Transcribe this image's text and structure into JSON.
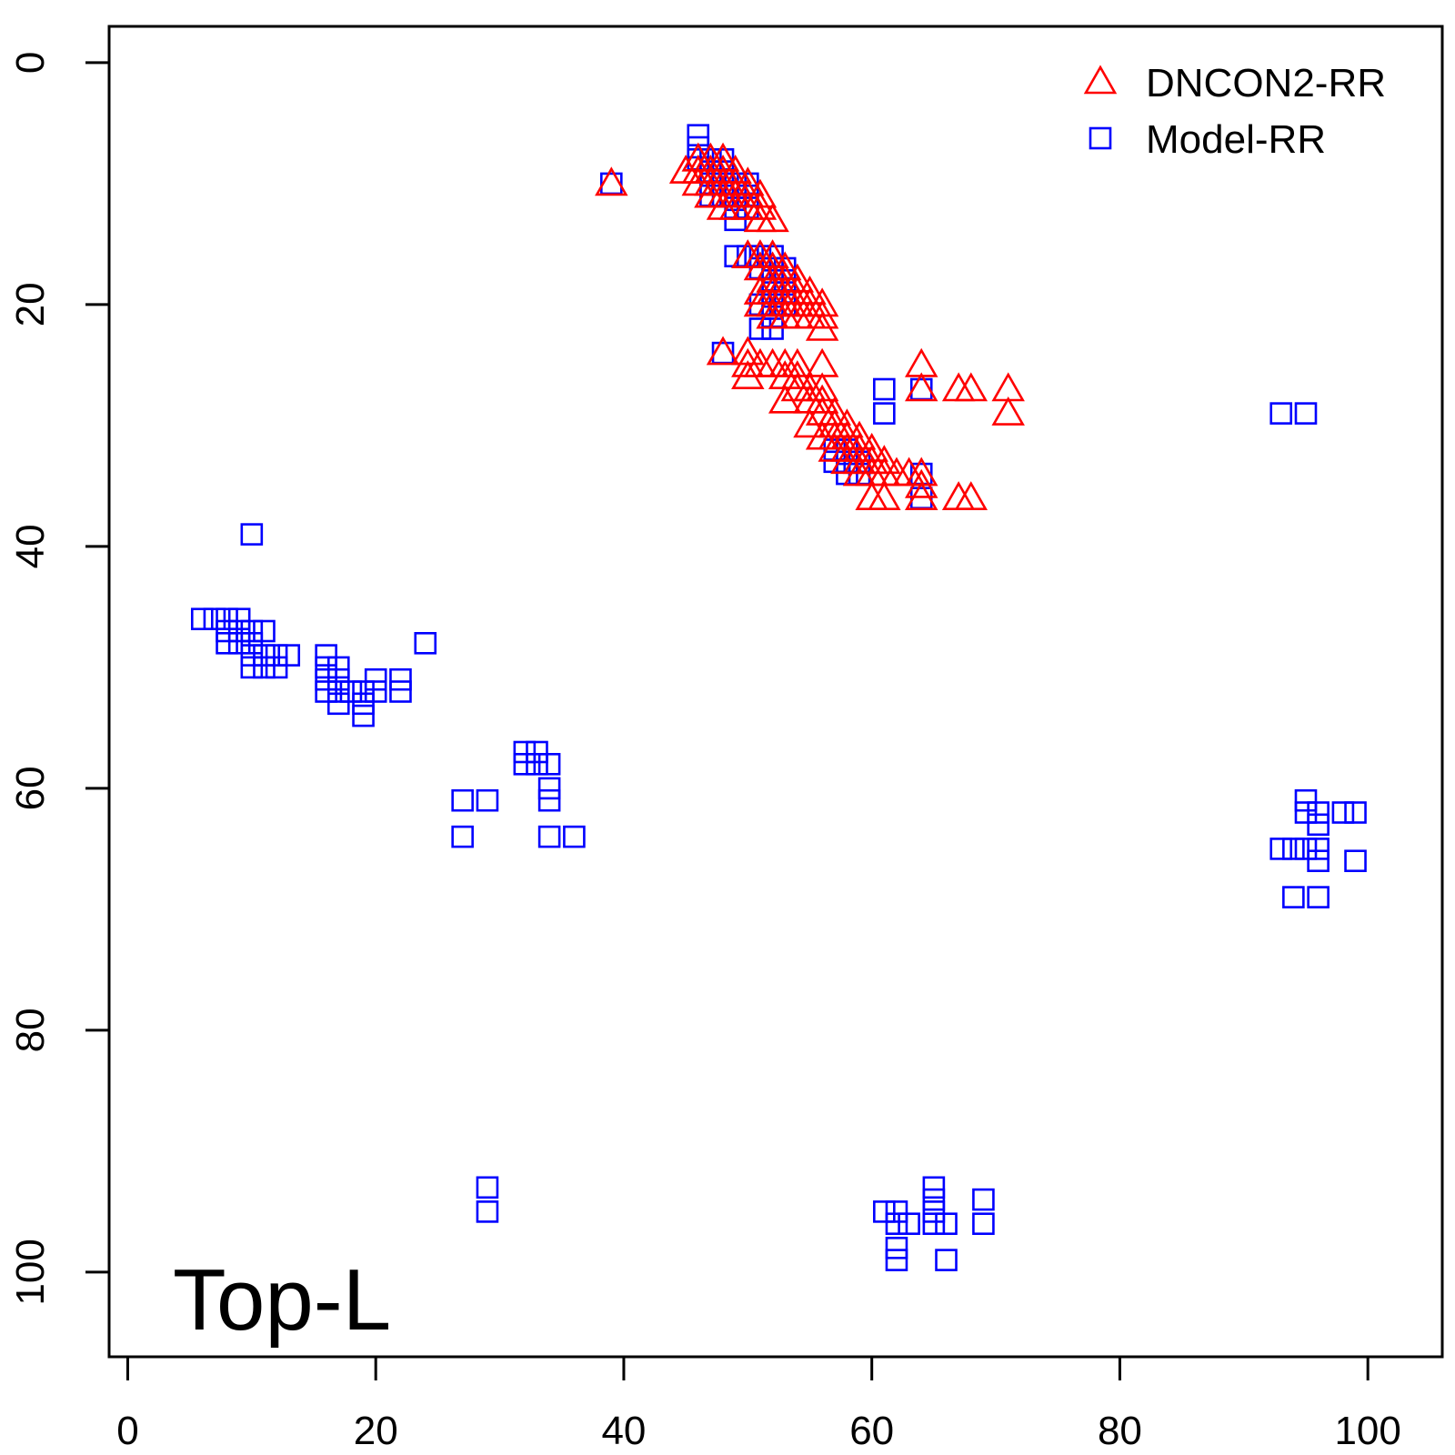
{
  "chart_data": {
    "type": "scatter",
    "title": "",
    "xlabel": "",
    "ylabel": "",
    "annotation": "Top-L",
    "xlim": [
      -1.5,
      106
    ],
    "ylim": [
      -3,
      107
    ],
    "y_reversed": true,
    "xticks": [
      0,
      20,
      40,
      60,
      80,
      100
    ],
    "yticks": [
      0,
      20,
      40,
      60,
      80,
      100
    ],
    "legend_position": "top-right",
    "series": [
      {
        "name": "DNCON2-RR",
        "marker": "triangle",
        "color": "#ff0000",
        "points": [
          [
            39,
            10
          ],
          [
            45,
            9
          ],
          [
            46,
            8
          ],
          [
            46,
            9
          ],
          [
            46,
            10
          ],
          [
            47,
            8
          ],
          [
            47,
            9
          ],
          [
            47,
            10
          ],
          [
            47,
            11
          ],
          [
            48,
            8
          ],
          [
            48,
            9
          ],
          [
            48,
            10
          ],
          [
            48,
            11
          ],
          [
            48,
            12
          ],
          [
            49,
            9
          ],
          [
            49,
            10
          ],
          [
            49,
            11
          ],
          [
            49,
            12
          ],
          [
            50,
            10
          ],
          [
            50,
            11
          ],
          [
            50,
            12
          ],
          [
            50,
            16
          ],
          [
            51,
            11
          ],
          [
            51,
            12
          ],
          [
            51,
            13
          ],
          [
            51,
            16
          ],
          [
            51,
            17
          ],
          [
            52,
            13
          ],
          [
            52,
            16
          ],
          [
            52,
            17
          ],
          [
            52,
            18
          ],
          [
            53,
            17
          ],
          [
            53,
            18
          ],
          [
            53,
            19
          ],
          [
            53,
            20
          ],
          [
            54,
            18
          ],
          [
            54,
            19
          ],
          [
            54,
            20
          ],
          [
            54,
            21
          ],
          [
            55,
            19
          ],
          [
            55,
            20
          ],
          [
            55,
            21
          ],
          [
            56,
            20
          ],
          [
            56,
            21
          ],
          [
            56,
            22
          ],
          [
            51,
            19
          ],
          [
            51,
            20
          ],
          [
            52,
            19
          ],
          [
            52,
            20
          ],
          [
            52,
            21
          ],
          [
            53,
            21
          ],
          [
            48,
            24
          ],
          [
            50,
            24
          ],
          [
            50,
            25
          ],
          [
            50,
            26
          ],
          [
            51,
            25
          ],
          [
            52,
            25
          ],
          [
            53,
            25
          ],
          [
            53,
            26
          ],
          [
            53,
            28
          ],
          [
            54,
            25
          ],
          [
            54,
            26
          ],
          [
            54,
            27
          ],
          [
            55,
            27
          ],
          [
            55,
            28
          ],
          [
            55,
            30
          ],
          [
            56,
            25
          ],
          [
            56,
            27
          ],
          [
            56,
            28
          ],
          [
            56,
            29
          ],
          [
            56,
            31
          ],
          [
            57,
            29
          ],
          [
            57,
            30
          ],
          [
            57,
            31
          ],
          [
            57,
            32
          ],
          [
            58,
            30
          ],
          [
            58,
            31
          ],
          [
            58,
            32
          ],
          [
            58,
            33
          ],
          [
            59,
            31
          ],
          [
            59,
            32
          ],
          [
            59,
            33
          ],
          [
            59,
            34
          ],
          [
            60,
            32
          ],
          [
            60,
            33
          ],
          [
            60,
            34
          ],
          [
            60,
            36
          ],
          [
            61,
            33
          ],
          [
            61,
            34
          ],
          [
            61,
            36
          ],
          [
            62,
            34
          ],
          [
            63,
            34
          ],
          [
            64,
            25
          ],
          [
            64,
            27
          ],
          [
            64,
            34
          ],
          [
            64,
            35
          ],
          [
            64,
            36
          ],
          [
            67,
            27
          ],
          [
            67,
            36
          ],
          [
            68,
            27
          ],
          [
            68,
            36
          ],
          [
            71,
            27
          ],
          [
            71,
            29
          ]
        ]
      },
      {
        "name": "Model-RR",
        "marker": "square",
        "color": "#0000ff",
        "points": [
          [
            39,
            10
          ],
          [
            46,
            6
          ],
          [
            46,
            7
          ],
          [
            46,
            8
          ],
          [
            47,
            8
          ],
          [
            47,
            9
          ],
          [
            47,
            10
          ],
          [
            47,
            11
          ],
          [
            48,
            8
          ],
          [
            48,
            9
          ],
          [
            48,
            10
          ],
          [
            48,
            11
          ],
          [
            49,
            10
          ],
          [
            49,
            12
          ],
          [
            49,
            13
          ],
          [
            50,
            10
          ],
          [
            50,
            11
          ],
          [
            50,
            12
          ],
          [
            49,
            16
          ],
          [
            50,
            16
          ],
          [
            51,
            16
          ],
          [
            51,
            17
          ],
          [
            51,
            20
          ],
          [
            51,
            22
          ],
          [
            52,
            16
          ],
          [
            52,
            17
          ],
          [
            52,
            18
          ],
          [
            52,
            19
          ],
          [
            52,
            20
          ],
          [
            52,
            21
          ],
          [
            52,
            22
          ],
          [
            53,
            17
          ],
          [
            53,
            18
          ],
          [
            53,
            19
          ],
          [
            53,
            20
          ],
          [
            48,
            24
          ],
          [
            57,
            32
          ],
          [
            57,
            33
          ],
          [
            58,
            32
          ],
          [
            58,
            33
          ],
          [
            58,
            34
          ],
          [
            59,
            33
          ],
          [
            59,
            34
          ],
          [
            61,
            27
          ],
          [
            61,
            29
          ],
          [
            64,
            27
          ],
          [
            64,
            34
          ],
          [
            64,
            36
          ],
          [
            93,
            29
          ],
          [
            95,
            29
          ],
          [
            10,
            39
          ],
          [
            6,
            46
          ],
          [
            7,
            46
          ],
          [
            8,
            46
          ],
          [
            8,
            47
          ],
          [
            8,
            48
          ],
          [
            9,
            46
          ],
          [
            9,
            47
          ],
          [
            9,
            48
          ],
          [
            10,
            47
          ],
          [
            10,
            48
          ],
          [
            10,
            49
          ],
          [
            10,
            50
          ],
          [
            11,
            47
          ],
          [
            11,
            49
          ],
          [
            11,
            50
          ],
          [
            12,
            49
          ],
          [
            12,
            50
          ],
          [
            13,
            49
          ],
          [
            24,
            48
          ],
          [
            16,
            49
          ],
          [
            16,
            50
          ],
          [
            16,
            51
          ],
          [
            16,
            52
          ],
          [
            17,
            50
          ],
          [
            17,
            51
          ],
          [
            17,
            52
          ],
          [
            17,
            53
          ],
          [
            18,
            52
          ],
          [
            19,
            52
          ],
          [
            19,
            53
          ],
          [
            19,
            54
          ],
          [
            20,
            51
          ],
          [
            20,
            52
          ],
          [
            22,
            51
          ],
          [
            22,
            52
          ],
          [
            27,
            61
          ],
          [
            27,
            64
          ],
          [
            29,
            61
          ],
          [
            32,
            57
          ],
          [
            32,
            58
          ],
          [
            33,
            57
          ],
          [
            33,
            58
          ],
          [
            34,
            58
          ],
          [
            34,
            60
          ],
          [
            34,
            61
          ],
          [
            34,
            64
          ],
          [
            36,
            64
          ],
          [
            95,
            61
          ],
          [
            95,
            62
          ],
          [
            95,
            65
          ],
          [
            96,
            62
          ],
          [
            96,
            63
          ],
          [
            96,
            65
          ],
          [
            96,
            66
          ],
          [
            98,
            62
          ],
          [
            99,
            62
          ],
          [
            99,
            66
          ],
          [
            93,
            65
          ],
          [
            94,
            65
          ],
          [
            94,
            69
          ],
          [
            96,
            69
          ],
          [
            29,
            93
          ],
          [
            29,
            95
          ],
          [
            61,
            95
          ],
          [
            62,
            95
          ],
          [
            62,
            96
          ],
          [
            62,
            98
          ],
          [
            62,
            99
          ],
          [
            63,
            96
          ],
          [
            65,
            93
          ],
          [
            65,
            94
          ],
          [
            65,
            95
          ],
          [
            65,
            96
          ],
          [
            66,
            96
          ],
          [
            66,
            99
          ],
          [
            69,
            94
          ],
          [
            69,
            96
          ]
        ]
      }
    ]
  }
}
